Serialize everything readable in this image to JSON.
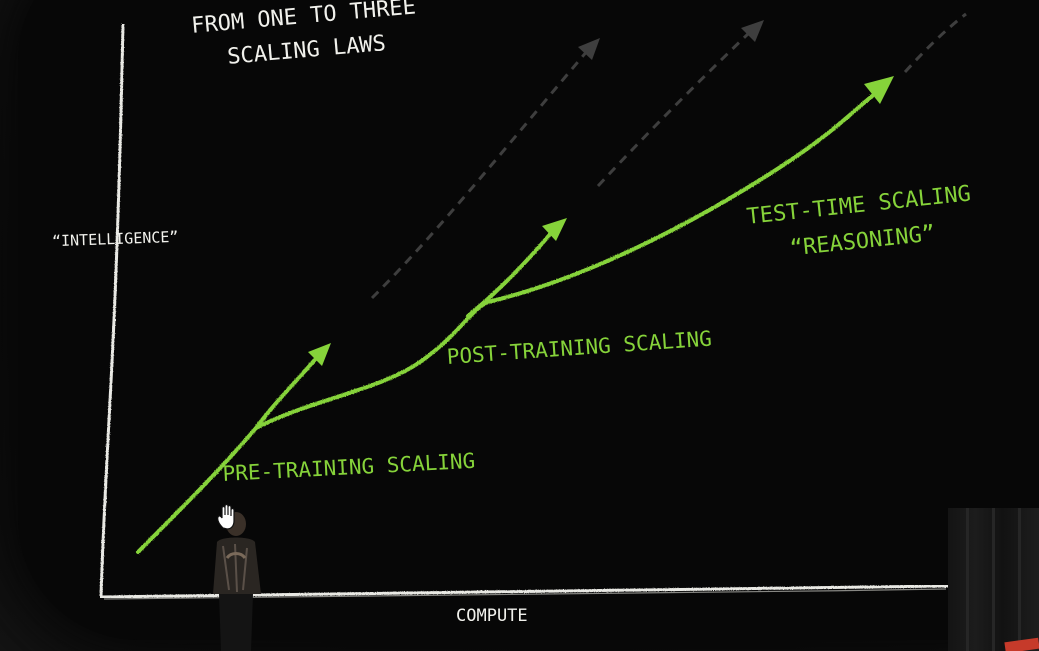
{
  "slide": {
    "title_lines": [
      "FROM ONE TO THREE",
      "SCALING LAWS"
    ],
    "y_axis_label": "“INTELLIGENCE”",
    "x_axis_label": "COMPUTE",
    "labels": {
      "pre_training": "PRE-TRAINING SCALING",
      "post_training": "POST-TRAINING SCALING",
      "test_time_line1": "TEST-TIME SCALING",
      "test_time_line2": "“REASONING”"
    }
  },
  "colors": {
    "background": "#070707",
    "chalk_white": "#f1f1ec",
    "chalk_green": "#86d33a",
    "dashed_gray": "#3e3e3e"
  },
  "icons": [
    "hand-cursor-icon",
    "arrowhead-icon"
  ]
}
